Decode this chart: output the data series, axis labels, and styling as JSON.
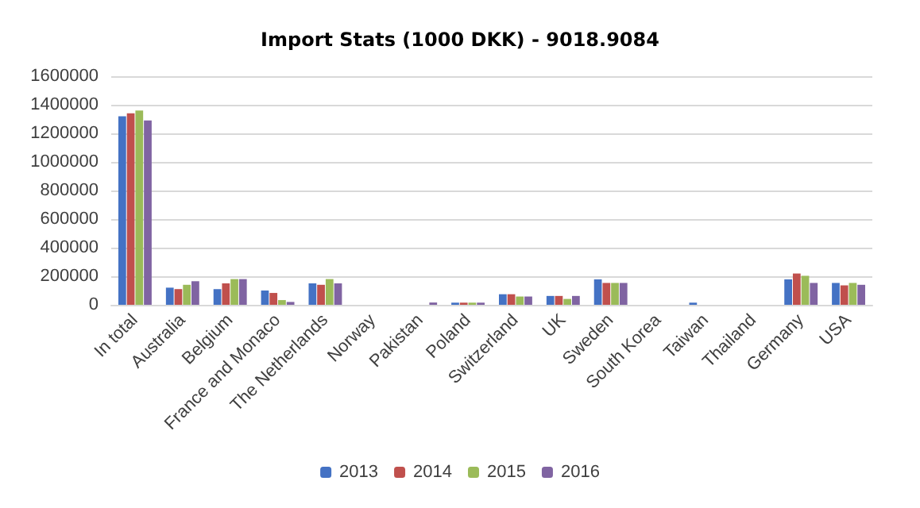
{
  "chart_data": {
    "type": "bar",
    "title": "Import Stats (1000 DKK) - 9018.9084",
    "categories": [
      "In total",
      "Australia",
      "Belgium",
      "France and Monaco",
      "The Netherlands",
      "Norway",
      "Pakistan",
      "Poland",
      "Switzerland",
      "UK",
      "Sweden",
      "South Korea",
      "Taiwan",
      "Thailand",
      "Germany",
      "USA"
    ],
    "series": [
      {
        "name": "2013",
        "color": "#4472c4",
        "values": [
          1320000,
          120000,
          110000,
          100000,
          150000,
          0,
          0,
          15000,
          74000,
          62000,
          178000,
          0,
          15000,
          0,
          178000,
          153000
        ]
      },
      {
        "name": "2014",
        "color": "#c0504d",
        "values": [
          1340000,
          110000,
          150000,
          83000,
          140000,
          0,
          0,
          15000,
          74000,
          62000,
          153000,
          0,
          0,
          0,
          219000,
          136000
        ]
      },
      {
        "name": "2015",
        "color": "#9bbb59",
        "values": [
          1360000,
          140000,
          180000,
          33000,
          180000,
          0,
          0,
          15000,
          58000,
          41000,
          153000,
          0,
          0,
          0,
          203000,
          153000
        ]
      },
      {
        "name": "2016",
        "color": "#8064a2",
        "values": [
          1290000,
          165000,
          180000,
          20000,
          150000,
          0,
          16000,
          15000,
          58000,
          62000,
          153000,
          0,
          0,
          0,
          153000,
          140000
        ]
      }
    ],
    "ylim": [
      0,
      1600000
    ],
    "yticks": [
      0,
      200000,
      400000,
      600000,
      800000,
      1000000,
      1200000,
      1400000,
      1600000
    ],
    "grid": "y",
    "legend": "bottom"
  }
}
